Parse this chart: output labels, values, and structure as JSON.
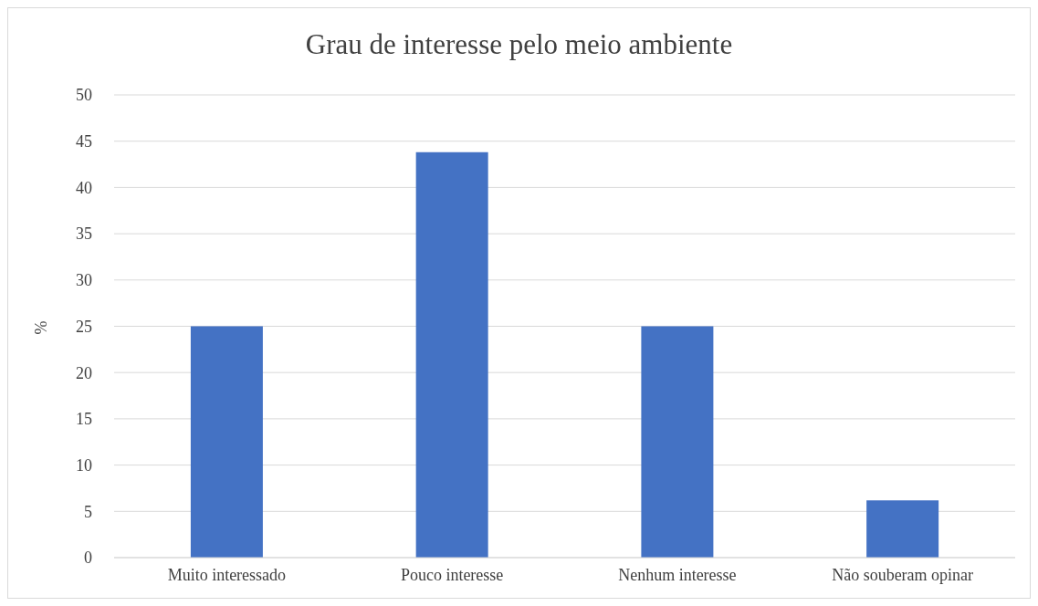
{
  "chart_data": {
    "type": "bar",
    "title": "Grau de interesse pelo meio ambiente",
    "ylabel": "%",
    "categories": [
      "Muito interessado",
      "Pouco interesse",
      "Nenhum interesse",
      "Não souberam opinar"
    ],
    "values": [
      25,
      43.8,
      25,
      6.2
    ],
    "color": "#4472c4",
    "ylim": [
      0,
      50
    ],
    "yticks": [
      0,
      5,
      10,
      15,
      20,
      25,
      30,
      35,
      40,
      45,
      50
    ],
    "grid": "y"
  }
}
